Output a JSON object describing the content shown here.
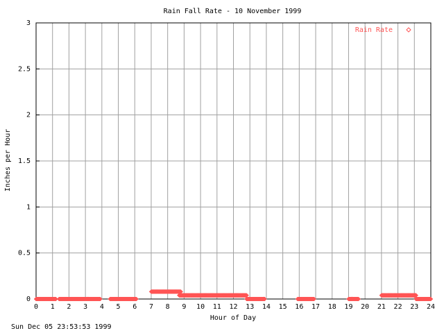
{
  "chart_data": {
    "type": "scatter",
    "title": "Rain Fall Rate - 10 November 1999",
    "xlabel": "Hour of Day",
    "ylabel": "Inches per Hour",
    "xlim": [
      0,
      24
    ],
    "ylim": [
      0,
      3
    ],
    "xticks": [
      "0",
      "1",
      "2",
      "3",
      "4",
      "5",
      "6",
      "7",
      "8",
      "9",
      "10",
      "11",
      "12",
      "13",
      "14",
      "15",
      "16",
      "17",
      "18",
      "19",
      "20",
      "21",
      "22",
      "23",
      "24"
    ],
    "yticks": [
      "0",
      "0.5",
      "1",
      "1.5",
      "2",
      "2.5",
      "3"
    ],
    "grid": true,
    "legend": "top-right",
    "series": [
      {
        "name": "Rain Rate",
        "color": "#ff5555",
        "marker": "diamond",
        "segments": [
          {
            "x_start": 0.0,
            "x_end": 1.2,
            "y": 0
          },
          {
            "x_start": 1.4,
            "x_end": 3.9,
            "y": 0
          },
          {
            "x_start": 4.5,
            "x_end": 6.1,
            "y": 0
          },
          {
            "x_start": 7.0,
            "x_end": 8.8,
            "y": 0.08
          },
          {
            "x_start": 8.7,
            "x_end": 12.8,
            "y": 0.04
          },
          {
            "x_start": 12.8,
            "x_end": 13.9,
            "y": 0
          },
          {
            "x_start": 15.9,
            "x_end": 16.9,
            "y": 0
          },
          {
            "x_start": 19.0,
            "x_end": 19.6,
            "y": 0
          },
          {
            "x_start": 21.0,
            "x_end": 23.1,
            "y": 0.04
          },
          {
            "x_start": 23.1,
            "x_end": 24.0,
            "y": 0
          }
        ]
      }
    ]
  },
  "footer": "Sun Dec 05 23:53:53 1999"
}
